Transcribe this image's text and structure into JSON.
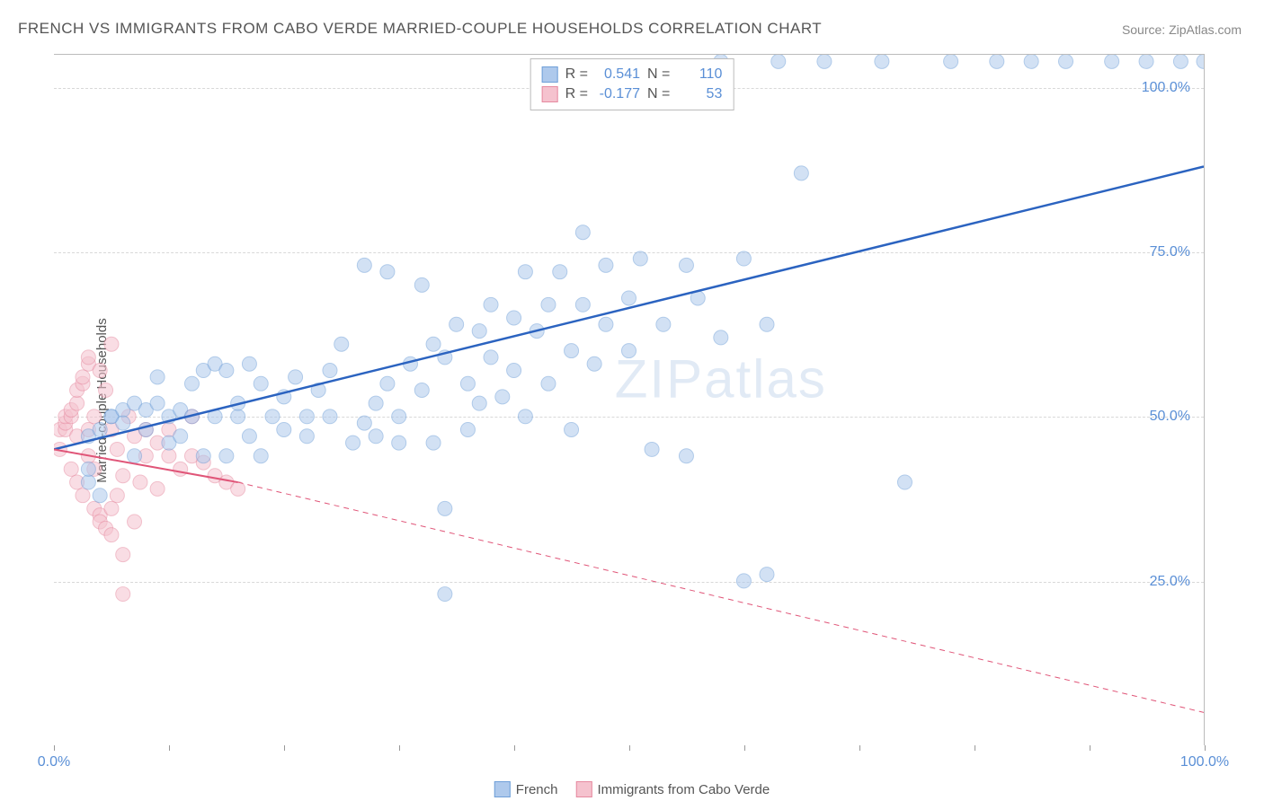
{
  "title": "FRENCH VS IMMIGRANTS FROM CABO VERDE MARRIED-COUPLE HOUSEHOLDS CORRELATION CHART",
  "source": "Source: ZipAtlas.com",
  "watermark": "ZIPatlas",
  "y_axis_label": "Married-couple Households",
  "chart": {
    "type": "scatter",
    "xlim": [
      0,
      100
    ],
    "ylim": [
      0,
      105
    ],
    "x_ticks": [
      0,
      10,
      20,
      30,
      40,
      50,
      60,
      70,
      80,
      90,
      100
    ],
    "x_tick_labels": {
      "0": "0.0%",
      "100": "100.0%"
    },
    "y_ticks": [
      25,
      50,
      75,
      100
    ],
    "y_tick_labels": {
      "25": "25.0%",
      "50": "50.0%",
      "75": "75.0%",
      "100": "100.0%"
    },
    "background_color": "#ffffff",
    "grid_color": "#d8d8d8",
    "axis_color": "#bbbbbb",
    "tick_label_color": "#5a8fd6",
    "text_color": "#555555",
    "marker_radius": 8,
    "marker_opacity": 0.55,
    "line_width_primary": 2.5,
    "line_width_solid_red": 2,
    "line_width_dashed": 1,
    "dash_pattern": "6,5"
  },
  "series": [
    {
      "name": "French",
      "color_fill": "#aec9ec",
      "color_stroke": "#6f9fd8",
      "line_color": "#2b63c0",
      "points": [
        [
          3,
          47
        ],
        [
          4,
          48
        ],
        [
          5,
          50
        ],
        [
          5,
          50
        ],
        [
          6,
          51
        ],
        [
          6,
          49
        ],
        [
          7,
          52
        ],
        [
          7,
          44
        ],
        [
          8,
          51
        ],
        [
          8,
          48
        ],
        [
          9,
          52
        ],
        [
          9,
          56
        ],
        [
          10,
          50
        ],
        [
          10,
          46
        ],
        [
          11,
          51
        ],
        [
          11,
          47
        ],
        [
          12,
          55
        ],
        [
          12,
          50
        ],
        [
          13,
          57
        ],
        [
          13,
          44
        ],
        [
          14,
          58
        ],
        [
          14,
          50
        ],
        [
          15,
          44
        ],
        [
          15,
          57
        ],
        [
          16,
          50
        ],
        [
          16,
          52
        ],
        [
          17,
          47
        ],
        [
          17,
          58
        ],
        [
          18,
          55
        ],
        [
          18,
          44
        ],
        [
          19,
          50
        ],
        [
          20,
          53
        ],
        [
          20,
          48
        ],
        [
          21,
          56
        ],
        [
          22,
          47
        ],
        [
          22,
          50
        ],
        [
          23,
          54
        ],
        [
          24,
          50
        ],
        [
          24,
          57
        ],
        [
          25,
          61
        ],
        [
          26,
          46
        ],
        [
          27,
          49
        ],
        [
          27,
          73
        ],
        [
          28,
          47
        ],
        [
          28,
          52
        ],
        [
          29,
          55
        ],
        [
          29,
          72
        ],
        [
          30,
          50
        ],
        [
          30,
          46
        ],
        [
          31,
          58
        ],
        [
          32,
          54
        ],
        [
          32,
          70
        ],
        [
          33,
          46
        ],
        [
          33,
          61
        ],
        [
          34,
          59
        ],
        [
          34,
          36
        ],
        [
          34,
          23
        ],
        [
          35,
          64
        ],
        [
          36,
          55
        ],
        [
          36,
          48
        ],
        [
          37,
          52
        ],
        [
          37,
          63
        ],
        [
          38,
          59
        ],
        [
          38,
          67
        ],
        [
          39,
          53
        ],
        [
          40,
          65
        ],
        [
          40,
          57
        ],
        [
          41,
          50
        ],
        [
          41,
          72
        ],
        [
          42,
          63
        ],
        [
          43,
          55
        ],
        [
          43,
          67
        ],
        [
          44,
          72
        ],
        [
          45,
          60
        ],
        [
          45,
          48
        ],
        [
          46,
          78
        ],
        [
          46,
          67
        ],
        [
          47,
          58
        ],
        [
          48,
          64
        ],
        [
          48,
          73
        ],
        [
          50,
          68
        ],
        [
          50,
          60
        ],
        [
          51,
          74
        ],
        [
          52,
          45
        ],
        [
          53,
          64
        ],
        [
          55,
          73
        ],
        [
          55,
          44
        ],
        [
          56,
          68
        ],
        [
          58,
          62
        ],
        [
          60,
          74
        ],
        [
          60,
          25
        ],
        [
          62,
          26
        ],
        [
          62,
          64
        ],
        [
          65,
          87
        ],
        [
          67,
          104
        ],
        [
          72,
          104
        ],
        [
          74,
          40
        ],
        [
          78,
          104
        ],
        [
          82,
          104
        ],
        [
          85,
          104
        ],
        [
          88,
          104
        ],
        [
          92,
          104
        ],
        [
          95,
          104
        ],
        [
          98,
          104
        ],
        [
          100,
          104
        ],
        [
          63,
          104
        ],
        [
          58,
          104
        ],
        [
          3,
          40
        ],
        [
          3,
          42
        ],
        [
          4,
          38
        ]
      ],
      "trend": {
        "from": [
          0,
          45
        ],
        "to": [
          100,
          88
        ]
      }
    },
    {
      "name": "Immigrants from Cabo Verde",
      "color_fill": "#f5c2ce",
      "color_stroke": "#e68aa0",
      "line_color": "#e05578",
      "points": [
        [
          0.5,
          45
        ],
        [
          0.5,
          48
        ],
        [
          1,
          48
        ],
        [
          1,
          49
        ],
        [
          1,
          50
        ],
        [
          1.5,
          50
        ],
        [
          1.5,
          51
        ],
        [
          1.5,
          42
        ],
        [
          2,
          52
        ],
        [
          2,
          54
        ],
        [
          2,
          40
        ],
        [
          2,
          47
        ],
        [
          2.5,
          55
        ],
        [
          2.5,
          56
        ],
        [
          2.5,
          38
        ],
        [
          3,
          58
        ],
        [
          3,
          44
        ],
        [
          3,
          48
        ],
        [
          3,
          59
        ],
        [
          3.5,
          42
        ],
        [
          3.5,
          50
        ],
        [
          3.5,
          36
        ],
        [
          4,
          35
        ],
        [
          4,
          57
        ],
        [
          4,
          34
        ],
        [
          4.5,
          54
        ],
        [
          4.5,
          33
        ],
        [
          5,
          61
        ],
        [
          5,
          36
        ],
        [
          5,
          48
        ],
        [
          5,
          32
        ],
        [
          5.5,
          38
        ],
        [
          5.5,
          45
        ],
        [
          6,
          41
        ],
        [
          6,
          23
        ],
        [
          6,
          29
        ],
        [
          6.5,
          50
        ],
        [
          7,
          34
        ],
        [
          7,
          47
        ],
        [
          7.5,
          40
        ],
        [
          8,
          44
        ],
        [
          8,
          48
        ],
        [
          9,
          46
        ],
        [
          9,
          39
        ],
        [
          10,
          44
        ],
        [
          10,
          48
        ],
        [
          11,
          42
        ],
        [
          12,
          44
        ],
        [
          12,
          50
        ],
        [
          13,
          43
        ],
        [
          14,
          41
        ],
        [
          15,
          40
        ],
        [
          16,
          39
        ]
      ],
      "trend_solid": {
        "from": [
          0,
          45
        ],
        "to": [
          16,
          40
        ]
      },
      "trend_dashed": {
        "from": [
          16,
          40
        ],
        "to": [
          100,
          5
        ]
      }
    }
  ],
  "stats_legend": [
    {
      "R_label": "R =",
      "R": "0.541",
      "N_label": "N =",
      "N": "110",
      "swatch_fill": "#aec9ec",
      "swatch_stroke": "#6f9fd8"
    },
    {
      "R_label": "R =",
      "R": "-0.177",
      "N_label": "N =",
      "N": "53",
      "swatch_fill": "#f5c2ce",
      "swatch_stroke": "#e68aa0"
    }
  ],
  "series_legend": [
    {
      "label": "French",
      "swatch_fill": "#aec9ec",
      "swatch_stroke": "#6f9fd8"
    },
    {
      "label": "Immigrants from Cabo Verde",
      "swatch_fill": "#f5c2ce",
      "swatch_stroke": "#e68aa0"
    }
  ]
}
